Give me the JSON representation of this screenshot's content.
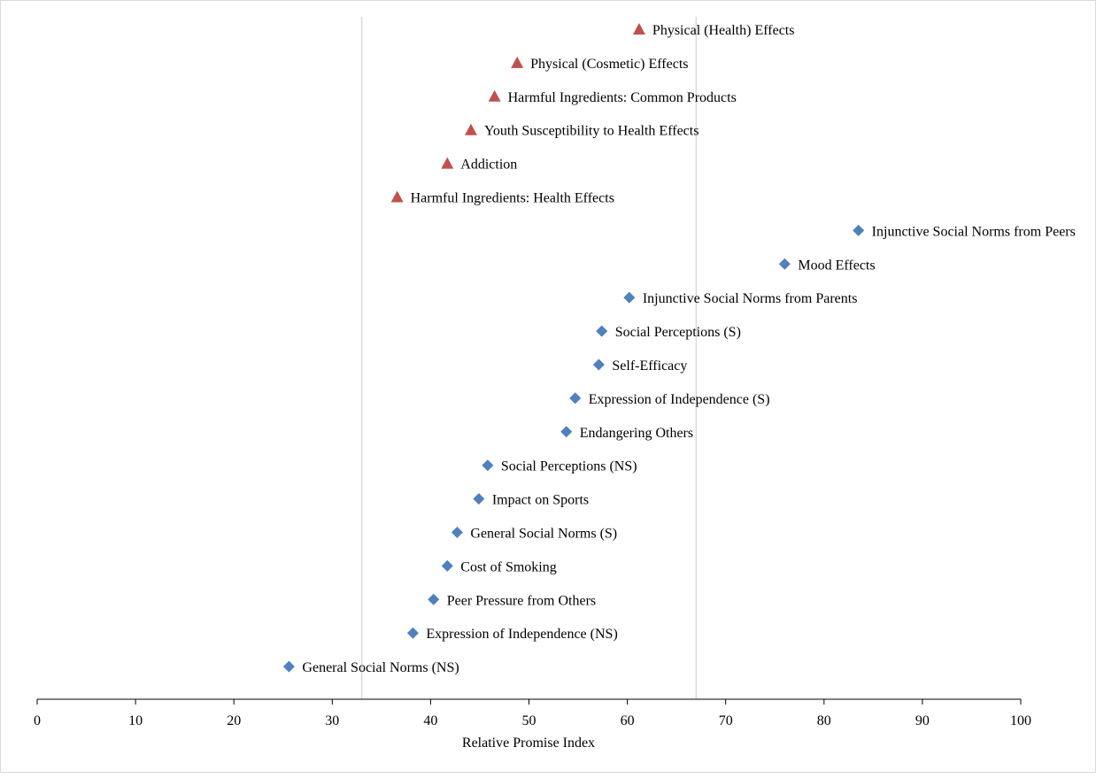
{
  "chart_data": {
    "type": "scatter",
    "title": "",
    "xlabel": "Relative Promise Index",
    "ylabel": "",
    "xlim": [
      0,
      100
    ],
    "x_ticks": [
      "0",
      "10",
      "20",
      "30",
      "40",
      "50",
      "60",
      "70",
      "80",
      "90",
      "100"
    ],
    "reference_lines_x": [
      33,
      67
    ],
    "grid": false,
    "legend": "none",
    "marker_colors": {
      "triangle": "#c0504d",
      "diamond": "#4f81bd"
    },
    "points": [
      {
        "label": "Physical (Health) Effects",
        "x": 61.2,
        "marker": "triangle"
      },
      {
        "label": "Physical (Cosmetic) Effects",
        "x": 48.8,
        "marker": "triangle"
      },
      {
        "label": "Harmful Ingredients: Common Products",
        "x": 46.5,
        "marker": "triangle"
      },
      {
        "label": "Youth Susceptibility to Health Effects",
        "x": 44.1,
        "marker": "triangle"
      },
      {
        "label": "Addiction",
        "x": 41.7,
        "marker": "triangle"
      },
      {
        "label": "Harmful Ingredients: Health Effects",
        "x": 36.6,
        "marker": "triangle"
      },
      {
        "label": "Injunctive Social Norms from Peers",
        "x": 83.5,
        "marker": "diamond"
      },
      {
        "label": "Mood Effects",
        "x": 76.0,
        "marker": "diamond"
      },
      {
        "label": "Injunctive Social Norms from Parents",
        "x": 60.2,
        "marker": "diamond"
      },
      {
        "label": "Social Perceptions (S)",
        "x": 57.4,
        "marker": "diamond"
      },
      {
        "label": "Self-Efficacy",
        "x": 57.1,
        "marker": "diamond"
      },
      {
        "label": "Expression of Independence (S)",
        "x": 54.7,
        "marker": "diamond"
      },
      {
        "label": "Endangering Others",
        "x": 53.8,
        "marker": "diamond"
      },
      {
        "label": "Social Perceptions (NS)",
        "x": 45.8,
        "marker": "diamond"
      },
      {
        "label": "Impact on Sports",
        "x": 44.9,
        "marker": "diamond"
      },
      {
        "label": "General Social Norms (S)",
        "x": 42.7,
        "marker": "diamond"
      },
      {
        "label": "Cost of Smoking",
        "x": 41.7,
        "marker": "diamond"
      },
      {
        "label": "Peer Pressure from Others",
        "x": 40.3,
        "marker": "diamond"
      },
      {
        "label": "Expression of Independence (NS)",
        "x": 38.2,
        "marker": "diamond"
      },
      {
        "label": "General Social Norms (NS)",
        "x": 25.6,
        "marker": "diamond"
      }
    ]
  }
}
